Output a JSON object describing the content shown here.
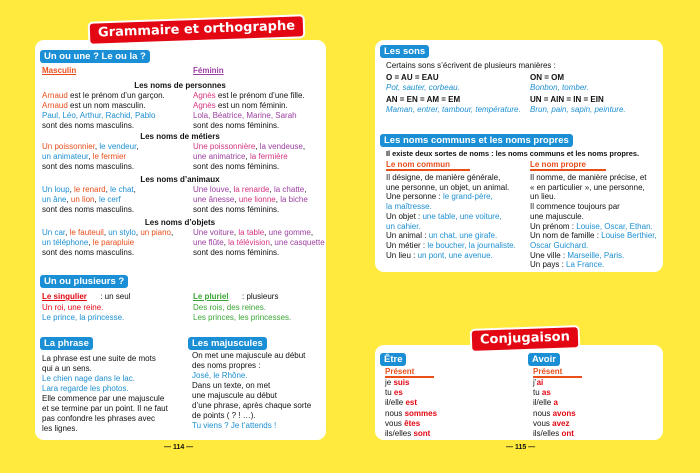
{
  "left_page": {
    "title": "Grammaire et orthographe",
    "page_number": "— 114 —",
    "gender": {
      "heading": "Un ou une ? Le ou la ?",
      "masculine_label": "Masculin",
      "feminine_label": "Féminin",
      "groups": [
        {
          "title": "Les noms de personnes",
          "masculine": [
            [
              {
                "text": "Arnaud",
                "color": "#e94e1b"
              },
              " est le prénom d’un garçon."
            ],
            [
              {
                "text": "Arnaud",
                "color": "#e94e1b"
              },
              " est un nom masculin."
            ],
            [
              {
                "text": "Paul, Léo, Arthur, Rachid, Pablo",
                "color": "#1d8fd1"
              }
            ],
            "sont des noms masculins."
          ],
          "feminine": [
            [
              {
                "text": "Agnès",
                "color": "#d6337f"
              },
              " est le prénom d’une fille."
            ],
            [
              {
                "text": "Agnès",
                "color": "#d6337f"
              },
              " est un nom féminin."
            ],
            [
              {
                "text": "Lola, Béatrice, Marine, Sarah",
                "color": "#9b3fa0"
              }
            ],
            "sont des noms féminins."
          ]
        },
        {
          "title": "Les noms de métiers",
          "masculine": [
            [
              {
                "text": "Un poissonnier",
                "color": "#e94e1b"
              },
              ", ",
              {
                "text": "le vendeur",
                "color": "#1d8fd1"
              },
              ","
            ],
            [
              {
                "text": "un animateur",
                "color": "#1d8fd1"
              },
              ", ",
              {
                "text": "le fermier",
                "color": "#e94e1b"
              }
            ],
            "sont des noms masculins."
          ],
          "feminine": [
            [
              {
                "text": "Une poissonnière",
                "color": "#d6337f"
              },
              ", ",
              {
                "text": "la vendeuse",
                "color": "#9b3fa0"
              },
              ","
            ],
            [
              {
                "text": "une animatrice",
                "color": "#9b3fa0"
              },
              ", ",
              {
                "text": "la fermière",
                "color": "#d6337f"
              }
            ],
            "sont des noms féminins."
          ]
        },
        {
          "title": "Les noms d’animaux",
          "masculine": [
            [
              {
                "text": "Un loup",
                "color": "#1d8fd1"
              },
              ", ",
              {
                "text": "le renard",
                "color": "#e94e1b"
              },
              ", ",
              {
                "text": "le chat",
                "color": "#1d8fd1"
              },
              ","
            ],
            [
              {
                "text": "un âne",
                "color": "#1d8fd1"
              },
              ", ",
              {
                "text": "un lion",
                "color": "#e94e1b"
              },
              ", ",
              {
                "text": "le cerf",
                "color": "#1d8fd1"
              }
            ],
            "sont des noms masculins."
          ],
          "feminine": [
            [
              {
                "text": "Une louve",
                "color": "#9b3fa0"
              },
              ", ",
              {
                "text": "la renarde",
                "color": "#d6337f"
              },
              ", ",
              {
                "text": "la chatte",
                "color": "#9b3fa0"
              },
              ","
            ],
            [
              {
                "text": "une ânesse",
                "color": "#9b3fa0"
              },
              ", ",
              {
                "text": "une lionne",
                "color": "#d6337f"
              },
              ", ",
              {
                "text": "la biche",
                "color": "#9b3fa0"
              }
            ],
            "sont des noms féminins."
          ]
        },
        {
          "title": "Les noms d’objets",
          "masculine": [
            [
              {
                "text": "Un car",
                "color": "#1d8fd1"
              },
              ", ",
              {
                "text": "le fauteuil",
                "color": "#e94e1b"
              },
              ", ",
              {
                "text": "un stylo",
                "color": "#1d8fd1"
              },
              ", ",
              {
                "text": "un piano",
                "color": "#e94e1b"
              },
              ","
            ],
            [
              {
                "text": "un téléphone",
                "color": "#1d8fd1"
              },
              ", ",
              {
                "text": "le parapluie",
                "color": "#e94e1b"
              }
            ],
            "sont des noms masculins."
          ],
          "feminine": [
            [
              {
                "text": "Une voiture",
                "color": "#9b3fa0"
              },
              ", ",
              {
                "text": "la table",
                "color": "#d6337f"
              },
              ", ",
              {
                "text": "une gomme",
                "color": "#9b3fa0"
              },
              ","
            ],
            [
              {
                "text": "une flûte",
                "color": "#9b3fa0"
              },
              ", ",
              {
                "text": "la télévision",
                "color": "#d6337f"
              },
              ", ",
              {
                "text": "une casquette",
                "color": "#9b3fa0"
              }
            ],
            "sont des noms féminins."
          ]
        }
      ]
    },
    "number": {
      "heading": "Un ou plusieurs ?",
      "singular": {
        "label": "Le singulier",
        "note": ": un seul",
        "lines": [
          [
            {
              "text": "Un roi, une reine.",
              "color": "#e30613"
            }
          ],
          [
            {
              "text": "Le prince, la princesse.",
              "color": "#1d8fd1"
            }
          ]
        ]
      },
      "plural": {
        "label": "Le pluriel",
        "note": ": plusieurs",
        "lines": [
          [
            {
              "text": "Des rois, des reines.",
              "color": "#3aa535"
            }
          ],
          [
            {
              "text": "Les princes, les princesses.",
              "color": "#3aa535"
            }
          ]
        ]
      }
    },
    "sentence": {
      "heading": "La phrase",
      "lines": [
        "La phrase est une suite de mots",
        "qui a un sens.",
        [
          {
            "text": "Le chien nage dans le lac.",
            "color": "#1d8fd1"
          }
        ],
        [
          {
            "text": "Lara regarde les photos.",
            "color": "#1d8fd1"
          }
        ],
        "Elle commence par une majuscule",
        "et se termine par un point. Il ne faut",
        "pas confondre les phrases avec",
        "les lignes."
      ]
    },
    "capitals": {
      "heading": "Les majuscules",
      "lines": [
        "On met une majuscule au début",
        "des noms propres :",
        [
          {
            "text": "José, le Rhône.",
            "color": "#1d8fd1"
          }
        ],
        "Dans un texte, on met",
        "une majuscule au début",
        "d’une phrase, après chaque sorte",
        "de points ( ? ! …).",
        [
          {
            "text": "Tu viens ? Je t’attends !",
            "color": "#1d8fd1"
          }
        ]
      ]
    }
  },
  "right_page": {
    "page_number": "— 115 —",
    "sounds": {
      "heading": "Les sons",
      "intro": "Certains sons s’écrivent de plusieurs manières :",
      "items": [
        {
          "formula": "O = AU = EAU",
          "example": "Pot, sauter, corbeau."
        },
        {
          "formula": "ON = OM",
          "example": "Bonbon, tomber."
        },
        {
          "formula": "AN = EN = AM = EM",
          "example": "Maman, entrer, tambour, température."
        },
        {
          "formula": "UN = AIN = IN = EIN",
          "example": "Brun, pain, sapin, peinture."
        }
      ]
    },
    "nouns": {
      "heading": "Les noms communs et les noms propres",
      "intro": "Il existe deux sortes de noms : les noms communs et les noms propres.",
      "common": {
        "label": "Le nom commun",
        "lines": [
          "Il désigne, de manière générale,",
          "une personne, un objet, un animal.",
          [
            "Une personne : ",
            {
              "text": "le grand-père,",
              "color": "#1d8fd1"
            }
          ],
          [
            {
              "text": "la maîtresse.",
              "color": "#1d8fd1"
            }
          ],
          [
            "Un objet : ",
            {
              "text": "une table, une voiture,",
              "color": "#1d8fd1"
            }
          ],
          [
            {
              "text": "un cahier.",
              "color": "#1d8fd1"
            }
          ],
          [
            "Un animal : ",
            {
              "text": "un chat, une girafe.",
              "color": "#1d8fd1"
            }
          ],
          [
            "Un métier : ",
            {
              "text": "le boucher, la journaliste.",
              "color": "#1d8fd1"
            }
          ],
          [
            "Un lieu : ",
            {
              "text": "un pont, une avenue.",
              "color": "#1d8fd1"
            }
          ]
        ]
      },
      "proper": {
        "label": "Le nom propre",
        "lines": [
          "Il nomme, de manière précise, et",
          "« en particulier », une personne,",
          "un lieu.",
          "Il commence toujours par",
          "une majuscule.",
          [
            "Un prénom : ",
            {
              "text": "Louise, Oscar, Ethan.",
              "color": "#1d8fd1"
            }
          ],
          [
            "Un nom de famille : ",
            {
              "text": "Louise Berthier,",
              "color": "#1d8fd1"
            }
          ],
          [
            {
              "text": "Oscar Guichard.",
              "color": "#1d8fd1"
            }
          ],
          [
            "Une ville : ",
            {
              "text": "Marseille, Paris.",
              "color": "#1d8fd1"
            }
          ],
          [
            "Un pays : ",
            {
              "text": "La France.",
              "color": "#1d8fd1"
            }
          ]
        ]
      }
    },
    "conjugation": {
      "title": "Conjugaison",
      "verbs": [
        {
          "name": "Être",
          "tense": "Présent",
          "rows": [
            [
              "je ",
              {
                "text": "suis",
                "color": "#e30613"
              }
            ],
            [
              "tu ",
              {
                "text": "es",
                "color": "#e30613"
              }
            ],
            [
              "il/elle ",
              {
                "text": "est",
                "color": "#e30613"
              }
            ],
            [
              "nous ",
              {
                "text": "sommes",
                "color": "#e30613"
              }
            ],
            [
              "vous ",
              {
                "text": "êtes",
                "color": "#e30613"
              }
            ],
            [
              "ils/elles ",
              {
                "text": "sont",
                "color": "#e30613"
              }
            ]
          ]
        },
        {
          "name": "Avoir",
          "tense": "Présent",
          "rows": [
            [
              "j’",
              {
                "text": "ai",
                "color": "#e30613"
              }
            ],
            [
              "tu ",
              {
                "text": "as",
                "color": "#e30613"
              }
            ],
            [
              "il/elle ",
              {
                "text": "a",
                "color": "#e30613"
              }
            ],
            [
              "nous ",
              {
                "text": "avons",
                "color": "#e30613"
              }
            ],
            [
              "vous ",
              {
                "text": "avez",
                "color": "#e30613"
              }
            ],
            [
              "ils/elles ",
              {
                "text": "ont",
                "color": "#e30613"
              }
            ]
          ]
        }
      ]
    }
  }
}
